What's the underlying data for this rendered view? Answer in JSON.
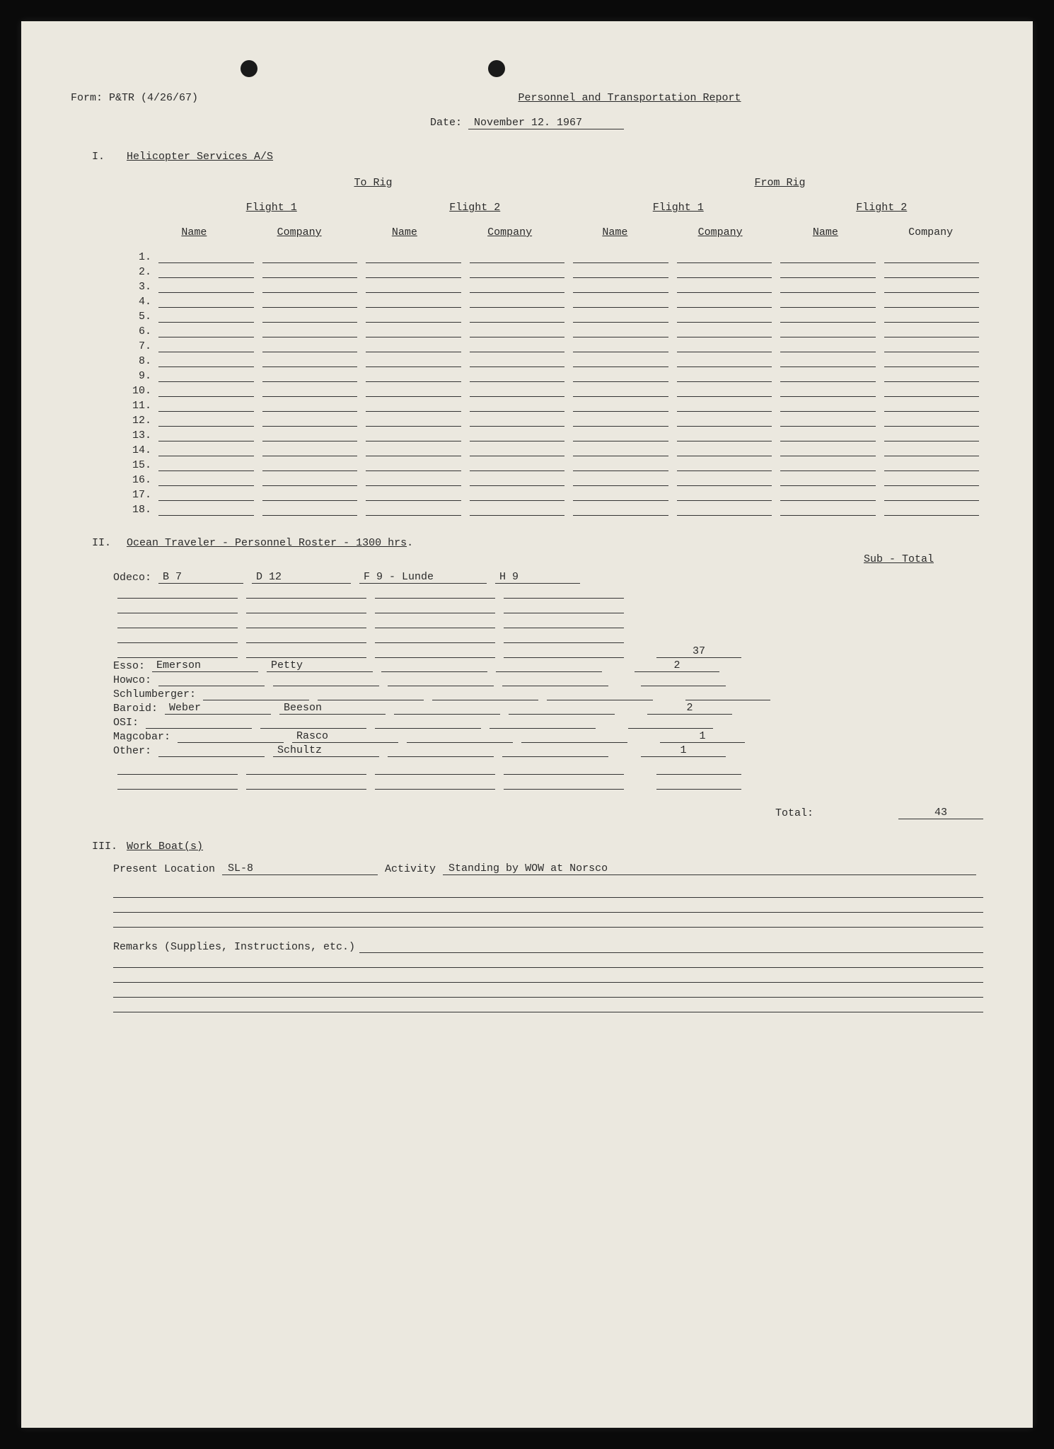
{
  "form_id": "Form: P&TR (4/26/67)",
  "title": "Personnel and Transportation Report",
  "date_label": "Date:",
  "date_value": "November 12. 1967",
  "section1": {
    "roman": "I.",
    "heading": "Helicopter Services A/S",
    "to_rig": "To Rig",
    "from_rig": "From Rig",
    "flight1": "Flight 1",
    "flight2": "Flight 2",
    "name": "Name",
    "company": "Company",
    "rows": 18
  },
  "section2": {
    "roman": "II.",
    "heading": "Ocean Traveler - Personnel Roster - 1300 hrs",
    "subtotal_label": "Sub - Total",
    "odeco_label": "Odeco:",
    "odeco": [
      "B 7",
      "D 12",
      "F 9 - Lunde",
      "H 9"
    ],
    "odeco_subtotal": "37",
    "companies": [
      {
        "label": "Esso:",
        "names": [
          "Emerson",
          "Petty"
        ],
        "subtotal": "2"
      },
      {
        "label": "Howco:",
        "names": [
          "",
          ""
        ],
        "subtotal": ""
      },
      {
        "label": "Schlumberger:",
        "names": [
          ""
        ],
        "subtotal": ""
      },
      {
        "label": "Baroid:",
        "names": [
          "Weber",
          "Beeson"
        ],
        "subtotal": "2"
      },
      {
        "label": "OSI:",
        "names": [
          ""
        ],
        "subtotal": ""
      },
      {
        "label": "Magcobar:",
        "names": [
          "",
          "Rasco"
        ],
        "subtotal": "1"
      },
      {
        "label": "Other:",
        "names": [
          "",
          "Schultz"
        ],
        "subtotal": "1"
      }
    ],
    "total_label": "Total:",
    "total_value": "43"
  },
  "section3": {
    "roman": "III.",
    "heading": "Work Boat(s)",
    "present_loc_label": "Present Location",
    "present_loc_value": "SL-8",
    "activity_label": "Activity",
    "activity_value": "Standing by WOW at Norsco",
    "remarks_label": "Remarks (Supplies, Instructions, etc.)"
  },
  "colors": {
    "paper": "#ebe8df",
    "ink": "#2a2a2a",
    "border": "#0a0a0a"
  }
}
